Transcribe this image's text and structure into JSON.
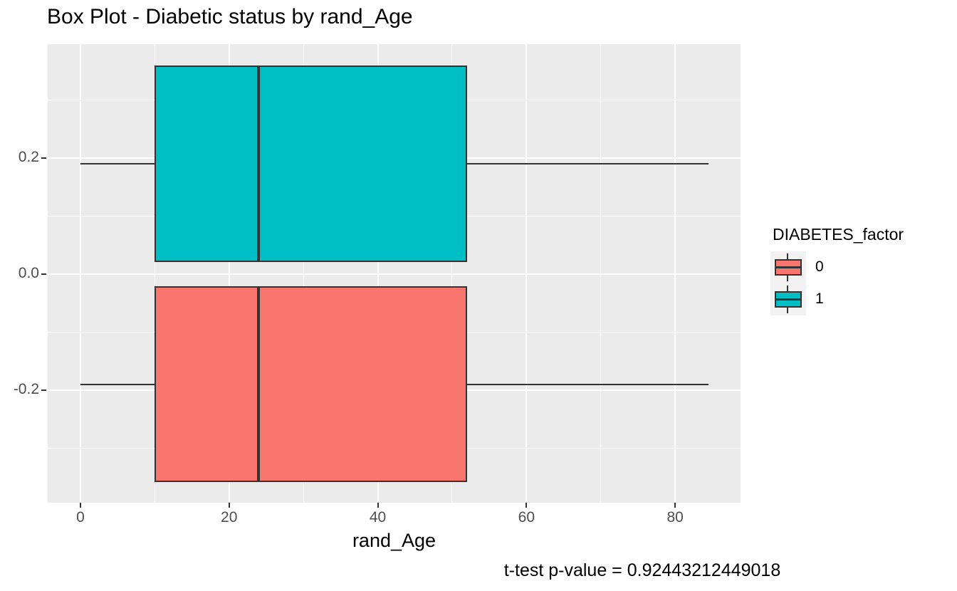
{
  "title": "Box Plot - Diabetic status by rand_Age",
  "chart_data": {
    "type": "boxplot",
    "orientation": "horizontal",
    "title": "Box Plot - Diabetic status by rand_Age",
    "xlabel": "rand_Age",
    "ylabel": "",
    "caption": "t-test p-value = 0.92443212449018",
    "grid": "on",
    "x_axis": {
      "tick_labels": [
        "0",
        "20",
        "40",
        "60",
        "80"
      ],
      "tick_values": [
        0,
        20,
        40,
        60,
        80
      ],
      "minor_values": [
        10,
        30,
        50,
        70
      ],
      "range": [
        -4.4,
        88.8
      ]
    },
    "y_axis": {
      "tick_labels": [
        "0.2",
        "0.0",
        "-0.2"
      ],
      "tick_values": [
        0.2,
        0.0,
        -0.2
      ],
      "minor_values": [
        0.3,
        0.1,
        -0.1,
        -0.3
      ],
      "range": [
        -0.394,
        0.396
      ]
    },
    "legend": {
      "title": "DIABETES_factor",
      "position": "right",
      "entries": [
        {
          "label": "0",
          "color": "#F8766D"
        },
        {
          "label": "1",
          "color": "#00BFC4"
        }
      ]
    },
    "series": [
      {
        "name": "0",
        "color": "#F8766D",
        "y_center": -0.19,
        "box_half_height": 0.169,
        "stats": {
          "min": 0,
          "q1": 10,
          "median": 24,
          "q3": 52,
          "max": 84.5
        }
      },
      {
        "name": "1",
        "color": "#00BFC4",
        "y_center": 0.19,
        "box_half_height": 0.169,
        "stats": {
          "min": 0,
          "q1": 10,
          "median": 24,
          "q3": 52,
          "max": 84.5
        }
      }
    ],
    "style": {
      "panel_bg": "#EBEBEB",
      "grid_color": "#FFFFFF",
      "box_outline": "#333333",
      "axis_text_color": "#4D4D4D",
      "tick_color": "#333333",
      "legend_key_bg": "#F2F2F2"
    }
  }
}
